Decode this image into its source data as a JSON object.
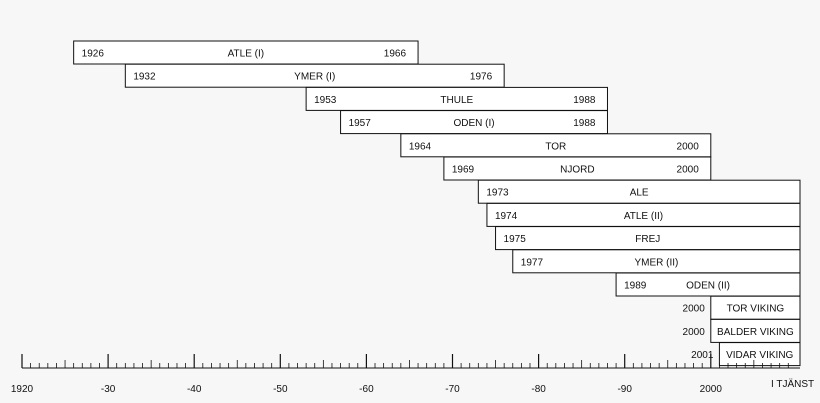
{
  "chart_data": {
    "type": "gantt",
    "title": "",
    "x_axis": {
      "range": [
        1920,
        2010
      ],
      "tick_labels": [
        {
          "value": 1920,
          "label": "1920"
        },
        {
          "value": 1930,
          "label": "-30"
        },
        {
          "value": 1940,
          "label": "-40"
        },
        {
          "value": 1950,
          "label": "-50"
        },
        {
          "value": 1960,
          "label": "-60"
        },
        {
          "value": 1970,
          "label": "-70"
        },
        {
          "value": 1980,
          "label": "-80"
        },
        {
          "value": 1990,
          "label": "-90"
        },
        {
          "value": 2000,
          "label": "2000"
        }
      ],
      "end_label": "I TJÄNST"
    },
    "bars": [
      {
        "name": "ATLE (I)",
        "start": 1926,
        "end": 1966,
        "start_label": "1926",
        "end_label": "1966"
      },
      {
        "name": "YMER (I)",
        "start": 1932,
        "end": 1976,
        "start_label": "1932",
        "end_label": "1976"
      },
      {
        "name": "THULE",
        "start": 1953,
        "end": 1988,
        "start_label": "1953",
        "end_label": "1988"
      },
      {
        "name": "ODEN (I)",
        "start": 1957,
        "end": 1988,
        "start_label": "1957",
        "end_label": "1988"
      },
      {
        "name": "TOR",
        "start": 1964,
        "end": 2000,
        "start_label": "1964",
        "end_label": "2000"
      },
      {
        "name": "NJORD",
        "start": 1969,
        "end": 2000,
        "start_label": "1969",
        "end_label": "2000"
      },
      {
        "name": "ALE",
        "start": 1973,
        "end": null,
        "start_label": "1973",
        "end_label": ""
      },
      {
        "name": "ATLE (II)",
        "start": 1974,
        "end": null,
        "start_label": "1974",
        "end_label": ""
      },
      {
        "name": "FREJ",
        "start": 1975,
        "end": null,
        "start_label": "1975",
        "end_label": ""
      },
      {
        "name": "YMER (II)",
        "start": 1977,
        "end": null,
        "start_label": "1977",
        "end_label": ""
      },
      {
        "name": "ODEN (II)",
        "start": 1989,
        "end": null,
        "start_label": "1989",
        "end_label": ""
      },
      {
        "name": "TOR VIKING",
        "start": 2000,
        "end": null,
        "start_label": "2000",
        "end_label": ""
      },
      {
        "name": "BALDER VIKING",
        "start": 2000,
        "end": null,
        "start_label": "2000",
        "end_label": ""
      },
      {
        "name": "VIDAR VIKING",
        "start": 2001,
        "end": null,
        "start_label": "2001",
        "end_label": ""
      }
    ]
  }
}
